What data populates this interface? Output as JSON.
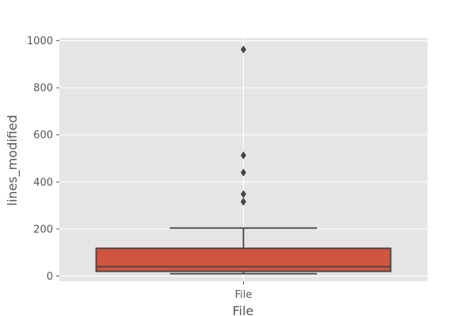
{
  "chart_data": {
    "type": "box",
    "title": "",
    "xlabel": "File",
    "ylabel": "lines_modified",
    "categories": [
      "File"
    ],
    "ylim": [
      -22,
      1012
    ],
    "yticks": [
      0,
      200,
      400,
      600,
      800,
      1000
    ],
    "grid": true,
    "boxes": [
      {
        "category": "File",
        "whisker_low": 10,
        "q1": 20,
        "median": 40,
        "q3": 118,
        "whisker_high": 204,
        "outliers": [
          316,
          348,
          440,
          513,
          963
        ],
        "color": "#d0543f"
      }
    ],
    "colors": {
      "plot_background": "#e5e5e5",
      "grid": "#ffffff",
      "box_edge": "#444444",
      "outlier": "#444444"
    }
  }
}
